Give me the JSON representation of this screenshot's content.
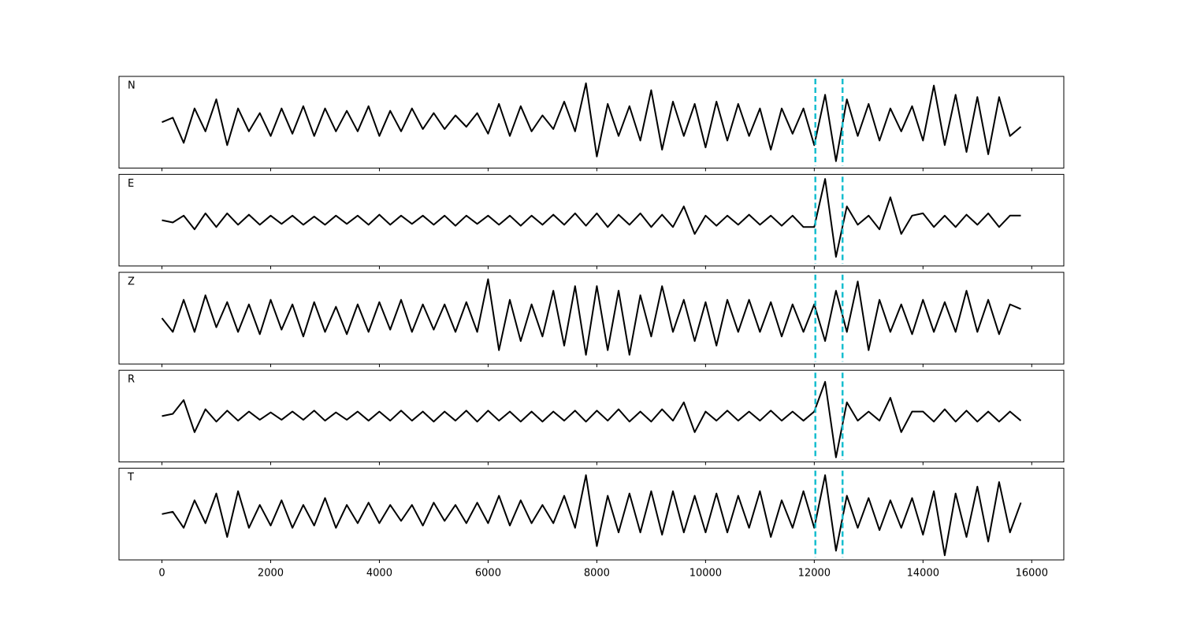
{
  "chart_data": {
    "type": "line",
    "layout": "stacked",
    "x": [
      0,
      200,
      400,
      600,
      800,
      1000,
      1200,
      1400,
      1600,
      1800,
      2000,
      2200,
      2400,
      2600,
      2800,
      3000,
      3200,
      3400,
      3600,
      3800,
      4000,
      4200,
      4400,
      4600,
      4800,
      5000,
      5200,
      5400,
      5600,
      5800,
      6000,
      6200,
      6400,
      6600,
      6800,
      7000,
      7200,
      7400,
      7600,
      7800,
      8000,
      8200,
      8400,
      8600,
      8800,
      9000,
      9200,
      9400,
      9600,
      9800,
      10000,
      10200,
      10400,
      10600,
      10800,
      11000,
      11200,
      11400,
      11600,
      11800,
      12000,
      12200,
      12400,
      12600,
      12800,
      13000,
      13200,
      13400,
      13600,
      13800,
      14000,
      14200,
      14400,
      14600,
      14800,
      15000,
      15200,
      15400,
      15600,
      15800
    ],
    "series": [
      {
        "name": "N",
        "color": "#000000",
        "values": [
          0,
          0.1,
          -0.45,
          0.3,
          -0.2,
          0.5,
          -0.5,
          0.3,
          -0.2,
          0.2,
          -0.3,
          0.3,
          -0.25,
          0.35,
          -0.3,
          0.3,
          -0.2,
          0.25,
          -0.2,
          0.35,
          -0.3,
          0.25,
          -0.2,
          0.3,
          -0.15,
          0.2,
          -0.15,
          0.15,
          -0.1,
          0.2,
          -0.25,
          0.4,
          -0.3,
          0.35,
          -0.2,
          0.15,
          -0.15,
          0.45,
          -0.2,
          0.85,
          -0.75,
          0.4,
          -0.3,
          0.35,
          -0.4,
          0.7,
          -0.6,
          0.45,
          -0.3,
          0.4,
          -0.55,
          0.45,
          -0.4,
          0.4,
          -0.3,
          0.3,
          -0.6,
          0.3,
          -0.25,
          0.3,
          -0.5,
          0.6,
          -0.85,
          0.5,
          -0.3,
          0.4,
          -0.4,
          0.3,
          -0.2,
          0.35,
          -0.4,
          0.8,
          -0.5,
          0.6,
          -0.65,
          0.55,
          -0.7,
          0.55,
          -0.3,
          -0.1
        ]
      },
      {
        "name": "E",
        "color": "#000000",
        "values": [
          0,
          -0.05,
          0.1,
          -0.2,
          0.15,
          -0.15,
          0.15,
          -0.1,
          0.12,
          -0.1,
          0.1,
          -0.08,
          0.1,
          -0.1,
          0.08,
          -0.1,
          0.1,
          -0.08,
          0.1,
          -0.1,
          0.12,
          -0.1,
          0.1,
          -0.08,
          0.1,
          -0.1,
          0.1,
          -0.12,
          0.1,
          -0.08,
          0.1,
          -0.1,
          0.1,
          -0.12,
          0.1,
          -0.1,
          0.12,
          -0.1,
          0.15,
          -0.12,
          0.15,
          -0.15,
          0.12,
          -0.1,
          0.15,
          -0.15,
          0.12,
          -0.15,
          0.3,
          -0.3,
          0.1,
          -0.12,
          0.1,
          -0.1,
          0.12,
          -0.1,
          0.1,
          -0.12,
          0.1,
          -0.15,
          -0.15,
          0.9,
          -0.8,
          0.3,
          -0.1,
          0.1,
          -0.2,
          0.5,
          -0.3,
          0.1,
          0.15,
          -0.15,
          0.1,
          -0.15,
          0.12,
          -0.1,
          0.15,
          -0.15,
          0.1,
          0.1
        ]
      },
      {
        "name": "Z",
        "color": "#000000",
        "values": [
          0,
          -0.3,
          0.4,
          -0.3,
          0.5,
          -0.2,
          0.35,
          -0.3,
          0.3,
          -0.35,
          0.4,
          -0.25,
          0.3,
          -0.4,
          0.35,
          -0.3,
          0.25,
          -0.35,
          0.3,
          -0.3,
          0.35,
          -0.25,
          0.4,
          -0.3,
          0.3,
          -0.25,
          0.3,
          -0.3,
          0.35,
          -0.3,
          0.85,
          -0.7,
          0.4,
          -0.5,
          0.3,
          -0.4,
          0.6,
          -0.6,
          0.7,
          -0.8,
          0.7,
          -0.7,
          0.6,
          -0.8,
          0.5,
          -0.4,
          0.7,
          -0.3,
          0.4,
          -0.5,
          0.35,
          -0.6,
          0.4,
          -0.3,
          0.4,
          -0.3,
          0.35,
          -0.4,
          0.3,
          -0.3,
          0.3,
          -0.5,
          0.6,
          -0.3,
          0.8,
          -0.7,
          0.4,
          -0.3,
          0.3,
          -0.35,
          0.4,
          -0.3,
          0.35,
          -0.3,
          0.6,
          -0.3,
          0.4,
          -0.35,
          0.3,
          0.2
        ]
      },
      {
        "name": "R",
        "color": "#000000",
        "values": [
          0,
          0.05,
          0.35,
          -0.35,
          0.15,
          -0.12,
          0.12,
          -0.1,
          0.1,
          -0.08,
          0.08,
          -0.08,
          0.1,
          -0.08,
          0.12,
          -0.1,
          0.08,
          -0.08,
          0.1,
          -0.1,
          0.1,
          -0.1,
          0.12,
          -0.1,
          0.1,
          -0.12,
          0.1,
          -0.1,
          0.12,
          -0.12,
          0.12,
          -0.1,
          0.1,
          -0.12,
          0.1,
          -0.12,
          0.1,
          -0.1,
          0.12,
          -0.12,
          0.12,
          -0.1,
          0.15,
          -0.12,
          0.1,
          -0.12,
          0.15,
          -0.1,
          0.3,
          -0.35,
          0.1,
          -0.1,
          0.12,
          -0.1,
          0.1,
          -0.1,
          0.12,
          -0.1,
          0.1,
          -0.1,
          0.1,
          0.75,
          -0.9,
          0.3,
          -0.1,
          0.1,
          -0.1,
          0.4,
          -0.35,
          0.1,
          0.1,
          -0.12,
          0.15,
          -0.12,
          0.12,
          -0.12,
          0.1,
          -0.12,
          0.1,
          -0.1
        ]
      },
      {
        "name": "T",
        "color": "#000000",
        "values": [
          0,
          0.05,
          -0.3,
          0.3,
          -0.2,
          0.45,
          -0.5,
          0.5,
          -0.3,
          0.2,
          -0.25,
          0.3,
          -0.3,
          0.2,
          -0.25,
          0.35,
          -0.3,
          0.2,
          -0.2,
          0.25,
          -0.2,
          0.2,
          -0.15,
          0.2,
          -0.25,
          0.25,
          -0.15,
          0.2,
          -0.2,
          0.25,
          -0.2,
          0.4,
          -0.25,
          0.3,
          -0.2,
          0.2,
          -0.2,
          0.4,
          -0.3,
          0.85,
          -0.7,
          0.4,
          -0.4,
          0.45,
          -0.4,
          0.5,
          -0.45,
          0.5,
          -0.4,
          0.4,
          -0.4,
          0.45,
          -0.4,
          0.4,
          -0.3,
          0.5,
          -0.5,
          0.3,
          -0.3,
          0.5,
          -0.3,
          0.85,
          -0.8,
          0.4,
          -0.3,
          0.35,
          -0.35,
          0.3,
          -0.3,
          0.35,
          -0.45,
          0.5,
          -0.9,
          0.45,
          -0.5,
          0.6,
          -0.6,
          0.7,
          -0.4,
          0.25
        ]
      }
    ],
    "xlim": [
      -790,
      16590
    ],
    "ylim": [
      -1,
      1
    ],
    "xticks": [
      0,
      2000,
      4000,
      6000,
      8000,
      10000,
      12000,
      14000,
      16000
    ],
    "vlines": {
      "x": [
        12020,
        12520
      ],
      "color": "#17becf",
      "style": "dashed"
    }
  }
}
